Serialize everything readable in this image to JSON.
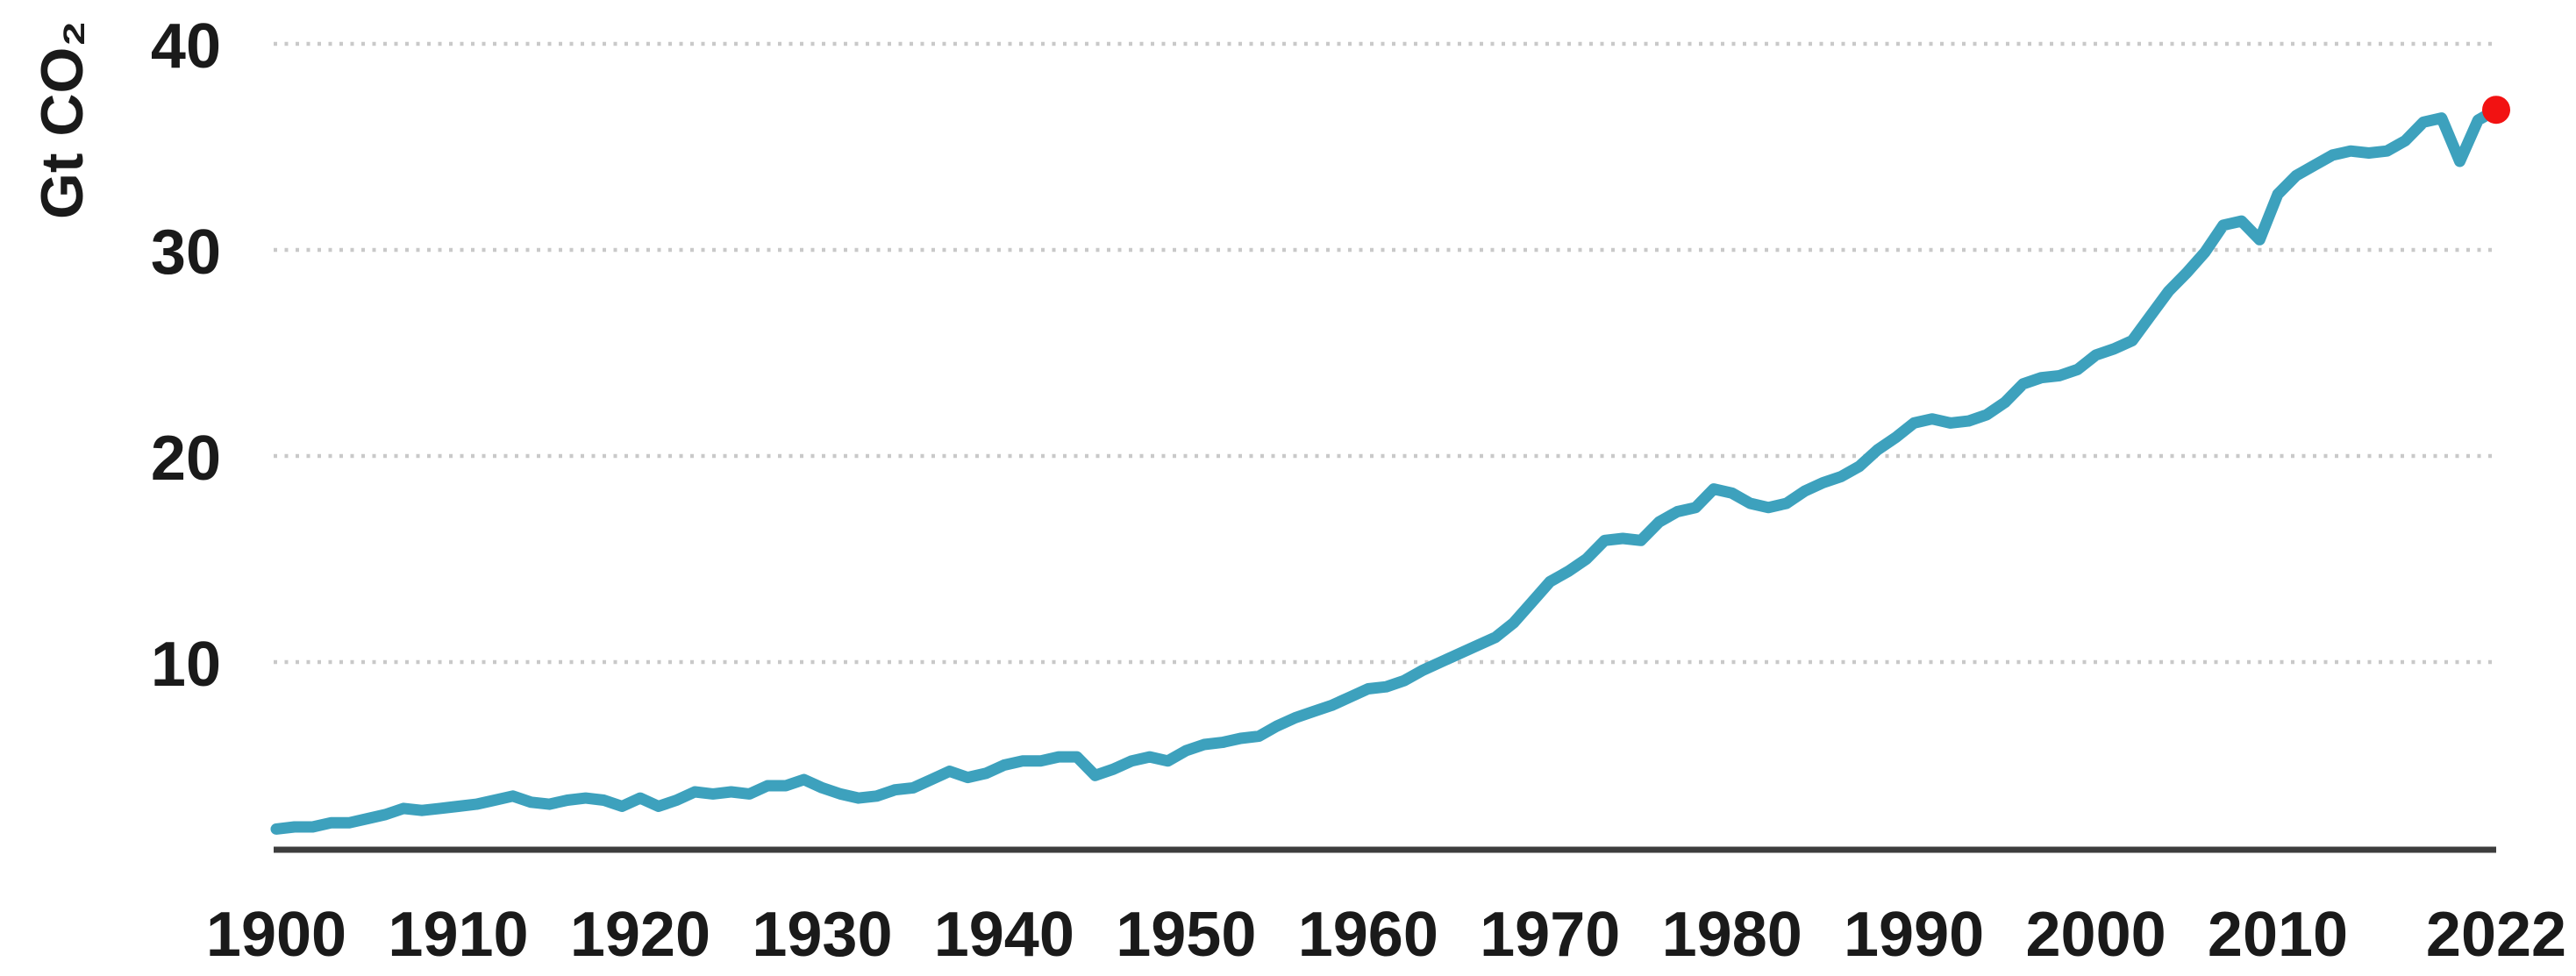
{
  "chart_data": {
    "type": "line",
    "title": "",
    "ylabel": "Gt CO₂",
    "xlabel": "",
    "x_start": 1900,
    "x_end": 2022,
    "x_ticks": [
      1900,
      1910,
      1920,
      1930,
      1940,
      1950,
      1960,
      1970,
      1980,
      1990,
      2000,
      2010,
      2022
    ],
    "y_ticks": [
      40,
      30,
      20,
      10
    ],
    "ylim": [
      0,
      40
    ],
    "grid": "horizontal-dotted",
    "legend": "none",
    "series": [
      {
        "cadence": "annual",
        "values": [
          1.9,
          2.0,
          2.0,
          2.2,
          2.2,
          2.4,
          2.6,
          2.9,
          2.8,
          2.9,
          3.0,
          3.1,
          3.3,
          3.5,
          3.2,
          3.1,
          3.3,
          3.4,
          3.3,
          3.0,
          3.4,
          3.0,
          3.3,
          3.7,
          3.6,
          3.7,
          3.6,
          4.0,
          4.0,
          4.3,
          3.9,
          3.6,
          3.4,
          3.5,
          3.8,
          3.9,
          4.3,
          4.7,
          4.4,
          4.6,
          5.0,
          5.2,
          5.2,
          5.4,
          5.4,
          4.5,
          4.8,
          5.2,
          5.4,
          5.2,
          5.7,
          6.0,
          6.1,
          6.3,
          6.4,
          6.9,
          7.3,
          7.6,
          7.9,
          8.3,
          8.7,
          8.8,
          9.1,
          9.6,
          10.0,
          10.4,
          10.8,
          11.2,
          11.9,
          12.9,
          13.9,
          14.4,
          15.0,
          15.9,
          16.0,
          15.9,
          16.8,
          17.3,
          17.5,
          18.4,
          18.2,
          17.7,
          17.5,
          17.7,
          18.3,
          18.7,
          19.0,
          19.5,
          20.3,
          20.9,
          21.6,
          21.8,
          21.6,
          21.7,
          22.0,
          22.6,
          23.5,
          23.8,
          23.9,
          24.2,
          24.9,
          25.2,
          25.6,
          26.8,
          28.0,
          28.9,
          29.9,
          31.2,
          31.4,
          30.5,
          32.7,
          33.6,
          34.1,
          34.6,
          34.8,
          34.7,
          34.8,
          35.3,
          36.2,
          36.4,
          34.3,
          36.3,
          36.8
        ]
      }
    ],
    "endpoint_marker": {
      "year": 2022,
      "value": 36.8
    },
    "colors": {
      "line": "#3DA1BD",
      "marker": "#F21212",
      "grid": "#C9C9C9",
      "axis": "#3D3D3D",
      "text": "#1A1A1A",
      "background": "#FFFFFF"
    }
  }
}
